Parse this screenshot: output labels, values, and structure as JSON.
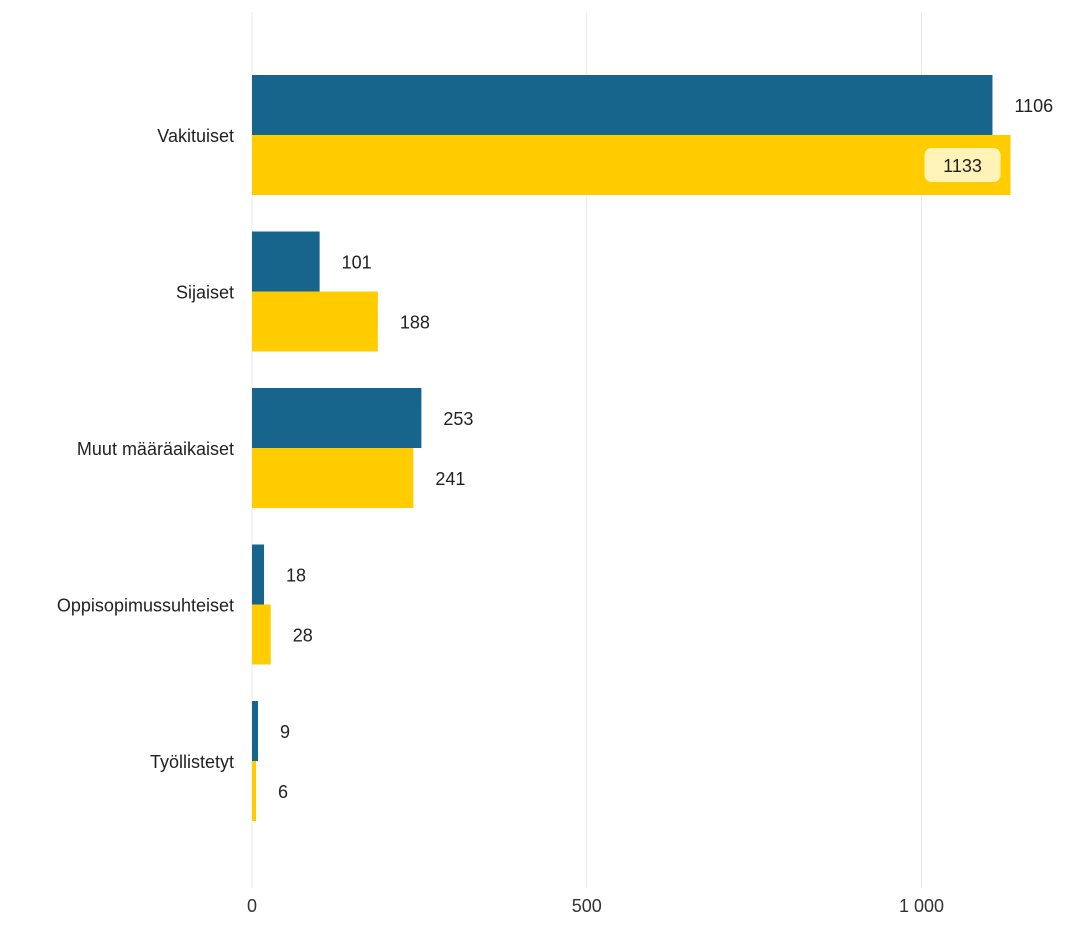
{
  "chart_data": {
    "type": "bar",
    "orientation": "horizontal",
    "categories": [
      "Vakituiset",
      "Sijaiset",
      "Muut määräaikaiset",
      "Oppisopimussuhteiset",
      "Työllistetyt"
    ],
    "series": [
      {
        "color": "#17648d",
        "values": [
          1106,
          101,
          253,
          18,
          9
        ]
      },
      {
        "color": "#ffcc00",
        "values": [
          1133,
          188,
          241,
          28,
          6
        ]
      }
    ],
    "xlim": [
      0,
      1200
    ],
    "xticks": [
      {
        "value": 0,
        "label": "0"
      },
      {
        "value": 500,
        "label": "500"
      },
      {
        "value": 1000,
        "label": "1 000"
      }
    ],
    "grid": true,
    "highlighted_label": {
      "series": 1,
      "category": 0,
      "background": "#fff3b8"
    }
  }
}
